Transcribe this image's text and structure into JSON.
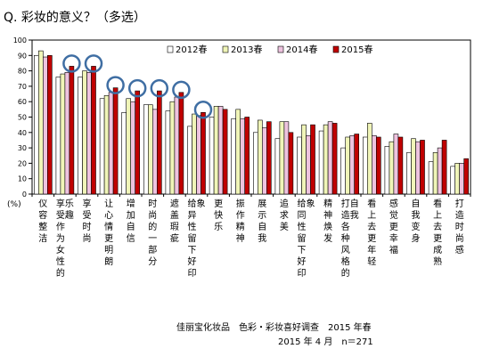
{
  "question": "Q. 彩妆的意义？（多选）",
  "footer": {
    "source": "佳丽宝化妆品　色彩・彩妆喜好调查　2015 年春",
    "meta": "2015 年 4 月　n＝271"
  },
  "chart_data": {
    "type": "bar",
    "ylim": [
      0,
      100
    ],
    "yticks": [
      0,
      10,
      20,
      30,
      40,
      50,
      60,
      70,
      80,
      90,
      100
    ],
    "ylabel_unit": "(%)",
    "grid": false,
    "legend_position": "top-right",
    "categories": [
      "仪容整洁",
      "享受作为女性的乐趣",
      "享受时尚",
      "让心情更明朗",
      "增加自信",
      "时尚的一部分",
      "遮盖瑕疵",
      "给异性留下好印象",
      "更快乐",
      "振作精神",
      "展示自我",
      "追求美",
      "给同性留下好印象",
      "精神焕发",
      "打造各种风格的自我",
      "看上去更年轻",
      "感觉更幸福",
      "自我变身",
      "看上去更成熟",
      "打造时尚感"
    ],
    "series": [
      {
        "name": "2012春",
        "color": "#ffffff",
        "values": [
          90,
          76,
          76,
          62,
          53,
          58,
          54,
          44,
          50,
          49,
          40,
          36,
          37,
          41,
          30,
          37,
          31,
          27,
          21,
          18
        ]
      },
      {
        "name": "2013春",
        "color": "#f0f5b8",
        "values": [
          93,
          78,
          80,
          64,
          62,
          58,
          60,
          52,
          57,
          55,
          48,
          47,
          45,
          45,
          37,
          46,
          34,
          36,
          27,
          20
        ]
      },
      {
        "name": "2014春",
        "color": "#eec3df",
        "values": [
          89,
          79,
          79,
          66,
          60,
          55,
          63,
          51,
          57,
          49,
          43,
          47,
          38,
          47,
          38,
          38,
          39,
          34,
          30,
          20
        ]
      },
      {
        "name": "2015春",
        "color": "#c00000",
        "values": [
          90,
          83,
          83,
          69,
          67,
          67,
          66,
          53,
          55,
          50,
          47,
          40,
          45,
          46,
          39,
          37,
          37,
          35,
          35,
          23
        ]
      }
    ],
    "highlight_circles_on_categories": [
      "享受作为女性的乐趣",
      "享受时尚",
      "让心情更明朗",
      "增加自信",
      "时尚的一部分",
      "遮盖瑕疵",
      "给异性留下好印象"
    ],
    "highlight_color": "#3f6ea3"
  }
}
